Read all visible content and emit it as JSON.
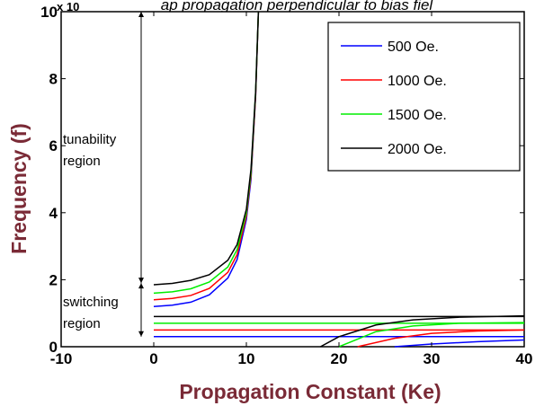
{
  "chart_data": {
    "type": "line",
    "title": "ap propagation perpendicular to bias fiel",
    "xlabel": "Propagation Constant (Ke)",
    "ylabel": "Frequency (f)",
    "y_exponent_label": "x 10",
    "xlim": [
      -10,
      40
    ],
    "ylim": [
      0,
      10
    ],
    "xticks": [
      "-10",
      "0",
      "10",
      "20",
      "30",
      "40"
    ],
    "yticks": [
      "0",
      "2",
      "4",
      "6",
      "8",
      "10"
    ],
    "grid": false,
    "legend_position": "top-right",
    "series": [
      {
        "name": "500 Oe.",
        "color": "#0000ff",
        "upper_branch": {
          "x": [
            0,
            2,
            4,
            6,
            8,
            9,
            10,
            10.5,
            11,
            11.3
          ],
          "y": [
            1.2,
            1.24,
            1.33,
            1.55,
            2.05,
            2.6,
            3.8,
            5.0,
            7.5,
            10
          ]
        },
        "lower_flat": 0.3,
        "lower_branch": {
          "x": [
            26,
            30,
            35,
            40
          ],
          "y": [
            0,
            0.08,
            0.15,
            0.2
          ]
        }
      },
      {
        "name": "1000 Oe.",
        "color": "#ff0000",
        "upper_branch": {
          "x": [
            0,
            2,
            4,
            6,
            8,
            9,
            10,
            10.5,
            11,
            11.3
          ],
          "y": [
            1.4,
            1.44,
            1.53,
            1.74,
            2.22,
            2.75,
            3.9,
            5.1,
            7.5,
            10
          ]
        },
        "lower_flat": 0.5,
        "lower_branch": {
          "x": [
            22,
            26,
            30,
            35,
            40
          ],
          "y": [
            0,
            0.25,
            0.4,
            0.47,
            0.5
          ]
        }
      },
      {
        "name": "1500 Oe.",
        "color": "#00ee00",
        "upper_branch": {
          "x": [
            0,
            2,
            4,
            6,
            8,
            9,
            10,
            10.5,
            11,
            11.3
          ],
          "y": [
            1.6,
            1.64,
            1.73,
            1.93,
            2.38,
            2.9,
            4.0,
            5.2,
            7.6,
            10
          ]
        },
        "lower_flat": 0.7,
        "lower_branch": {
          "x": [
            20,
            24,
            28,
            33,
            40
          ],
          "y": [
            0,
            0.45,
            0.62,
            0.7,
            0.72
          ]
        }
      },
      {
        "name": "2000 Oe.",
        "color": "#000000",
        "upper_branch": {
          "x": [
            0,
            2,
            4,
            6,
            8,
            9,
            10,
            10.5,
            11,
            11.3
          ],
          "y": [
            1.85,
            1.89,
            1.98,
            2.15,
            2.58,
            3.05,
            4.1,
            5.3,
            7.6,
            10
          ]
        },
        "lower_flat": 0.9,
        "lower_branch": {
          "x": [
            18,
            20,
            24,
            28,
            33,
            40
          ],
          "y": [
            0,
            0.3,
            0.65,
            0.8,
            0.88,
            0.92
          ]
        }
      }
    ],
    "annotations": [
      {
        "text": "tunability",
        "text2": "region",
        "y_from": 1.9,
        "y_to": 10
      },
      {
        "text": "switching",
        "text2": "region",
        "y_from": 0.3,
        "y_to": 1.9
      }
    ]
  }
}
